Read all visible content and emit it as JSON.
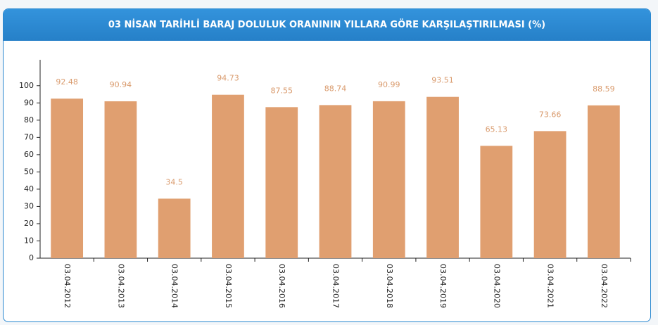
{
  "chart_data": {
    "type": "bar",
    "title": "03 NİSAN TARİHLİ BARAJ DOLULUK ORANININ YILLARA GÖRE KARŞILAŞTIRILMASI (%)",
    "categories": [
      "03.04.2012",
      "03.04.2013",
      "03.04.2014",
      "03.04.2015",
      "03.04.2016",
      "03.04.2017",
      "03.04.2018",
      "03.04.2019",
      "03.04.2020",
      "03.04.2021",
      "03.04.2022"
    ],
    "values": [
      92.48,
      90.94,
      34.5,
      94.73,
      87.55,
      88.74,
      90.99,
      93.51,
      65.13,
      73.66,
      88.59
    ],
    "color": "#e09f70",
    "ylim": [
      0,
      115
    ],
    "yticks": [
      0,
      10,
      20,
      30,
      40,
      50,
      60,
      70,
      80,
      90,
      100
    ],
    "grid": false
  }
}
